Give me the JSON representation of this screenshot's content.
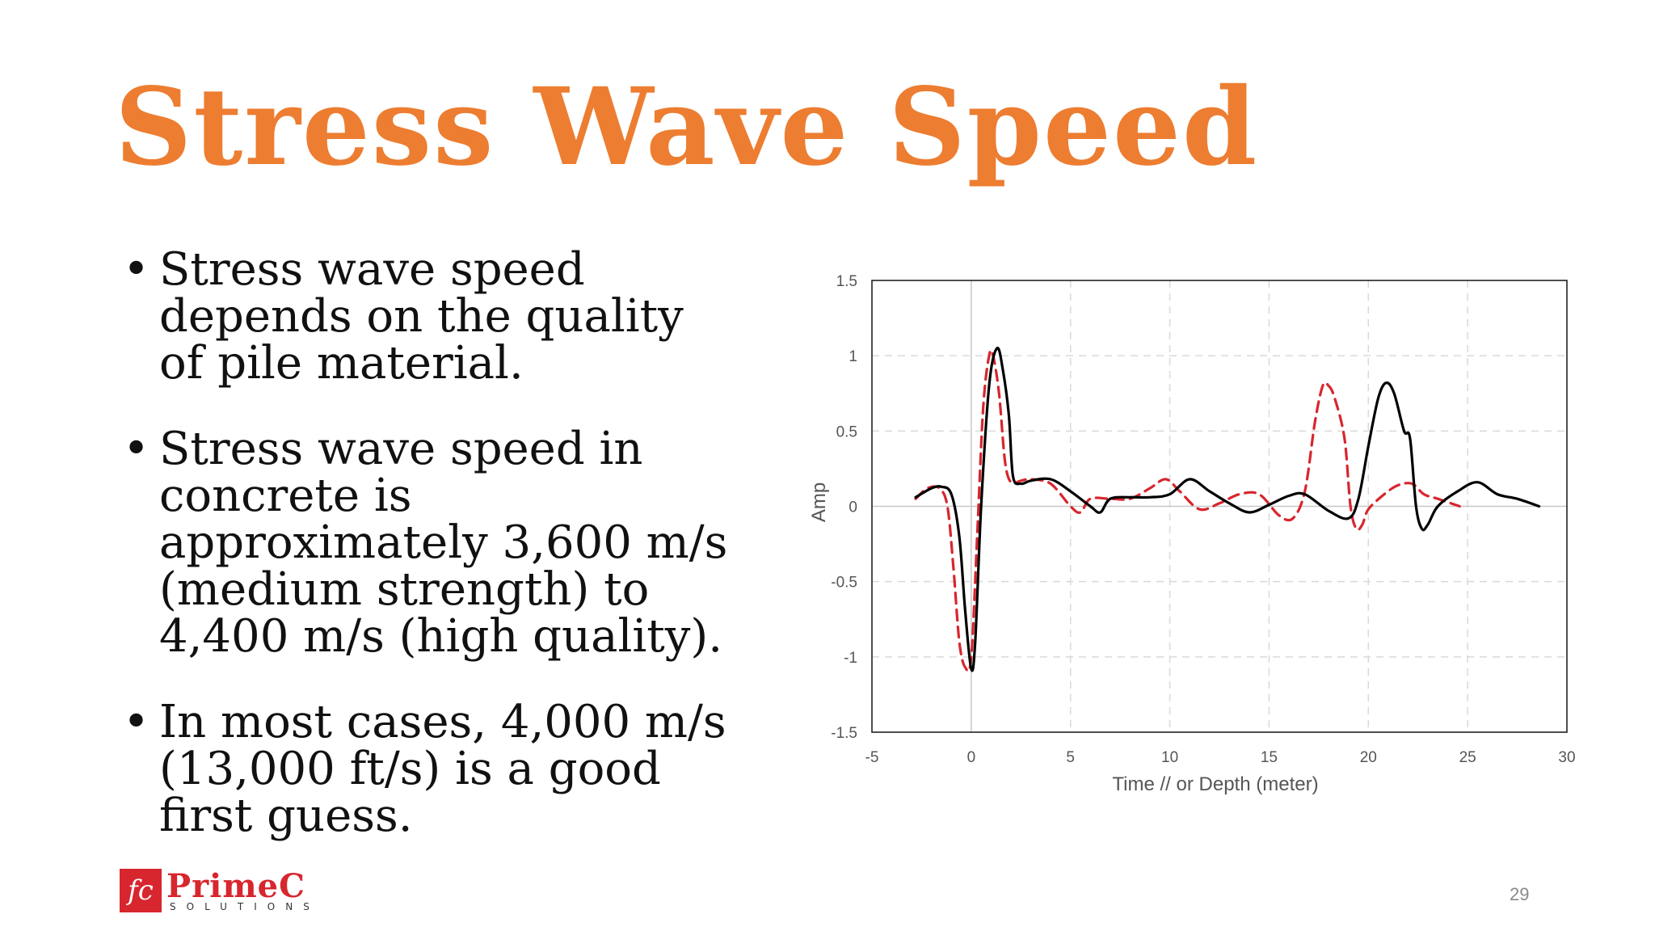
{
  "slide": {
    "title": "Stress Wave Speed",
    "bullets": [
      "Stress wave speed depends on the quality of pile material.",
      "Stress wave speed in concrete is approximately 3,600 m/s (medium strength) to 4,400 m/s (high quality).",
      "In most cases, 4,000 m/s (13,000 ft/s) is a good first guess."
    ],
    "bullet_glyph": "•",
    "page_number": "29",
    "logo": {
      "mark": "fc",
      "name": "PrimeC",
      "sub": "SOLUTIONS"
    },
    "accent_color": "#ed7d31",
    "logo_color": "#d7262e"
  },
  "chart_data": {
    "type": "line",
    "title": "",
    "xlabel": "Time // or Depth (meter)",
    "ylabel": "Amp",
    "xlim": [
      -5,
      30
    ],
    "ylim": [
      -1.5,
      1.5
    ],
    "xticks": [
      -5,
      0,
      5,
      10,
      15,
      20,
      25,
      30
    ],
    "yticks": [
      -1.5,
      -1,
      -0.5,
      0,
      0.5,
      1,
      1.5
    ],
    "xtick_labels": [
      "-5",
      "0",
      "5",
      "10",
      "15",
      "20",
      "25",
      "30"
    ],
    "ytick_labels": [
      "-1.5",
      "-1",
      "-0.5",
      "0",
      "0.5",
      "1",
      "1.5"
    ],
    "grid": true,
    "legend": "none",
    "series": [
      {
        "style": "solid",
        "color": "#000000",
        "x": [
          -2.8,
          -2.0,
          -1.5,
          -1.0,
          -0.6,
          -0.3,
          0.0,
          0.2,
          0.5,
          0.9,
          1.3,
          1.6,
          1.9,
          2.1,
          2.5,
          3.0,
          4.0,
          5.0,
          6.0,
          6.5,
          7.0,
          8.0,
          9.0,
          10.0,
          11.0,
          12.0,
          13.0,
          14.0,
          15.0,
          16.0,
          16.8,
          18.0,
          19.0,
          19.5,
          20.0,
          20.5,
          20.9,
          21.3,
          21.8,
          22.1,
          22.4,
          22.7,
          23.0,
          23.5,
          24.5,
          25.5,
          26.5,
          27.5,
          28.6
        ],
        "y": [
          0.06,
          0.12,
          0.13,
          0.08,
          -0.2,
          -0.7,
          -1.08,
          -0.9,
          0.0,
          0.8,
          1.05,
          0.9,
          0.6,
          0.2,
          0.15,
          0.17,
          0.18,
          0.1,
          0.0,
          -0.04,
          0.05,
          0.06,
          0.06,
          0.08,
          0.18,
          0.1,
          0.02,
          -0.04,
          0.01,
          0.07,
          0.08,
          -0.03,
          -0.08,
          0.05,
          0.4,
          0.72,
          0.82,
          0.75,
          0.5,
          0.45,
          0.0,
          -0.15,
          -0.12,
          0.0,
          0.1,
          0.16,
          0.08,
          0.05,
          0.0
        ]
      },
      {
        "style": "dashed",
        "color": "#d7262e",
        "x": [
          -2.8,
          -2.2,
          -1.6,
          -1.2,
          -0.9,
          -0.6,
          -0.3,
          0.0,
          0.3,
          0.6,
          0.9,
          1.1,
          1.4,
          1.7,
          2.0,
          2.5,
          3.0,
          4.0,
          5.0,
          5.5,
          6.0,
          7.0,
          8.0,
          9.0,
          9.8,
          10.5,
          11.5,
          12.5,
          13.5,
          14.5,
          15.5,
          16.2,
          16.8,
          17.3,
          17.7,
          18.0,
          18.3,
          18.8,
          19.1,
          19.4,
          19.7,
          20.0,
          20.8,
          21.5,
          22.2,
          22.8,
          23.5,
          24.6
        ],
        "y": [
          0.05,
          0.12,
          0.12,
          0.0,
          -0.4,
          -0.9,
          -1.07,
          -1.0,
          -0.2,
          0.65,
          1.0,
          1.0,
          0.75,
          0.3,
          0.16,
          0.17,
          0.18,
          0.15,
          0.0,
          -0.04,
          0.05,
          0.05,
          0.05,
          0.12,
          0.18,
          0.1,
          -0.02,
          0.02,
          0.08,
          0.08,
          -0.06,
          -0.08,
          0.1,
          0.55,
          0.8,
          0.8,
          0.72,
          0.45,
          0.0,
          -0.15,
          -0.12,
          -0.02,
          0.08,
          0.14,
          0.15,
          0.08,
          0.05,
          0.0
        ]
      }
    ]
  }
}
